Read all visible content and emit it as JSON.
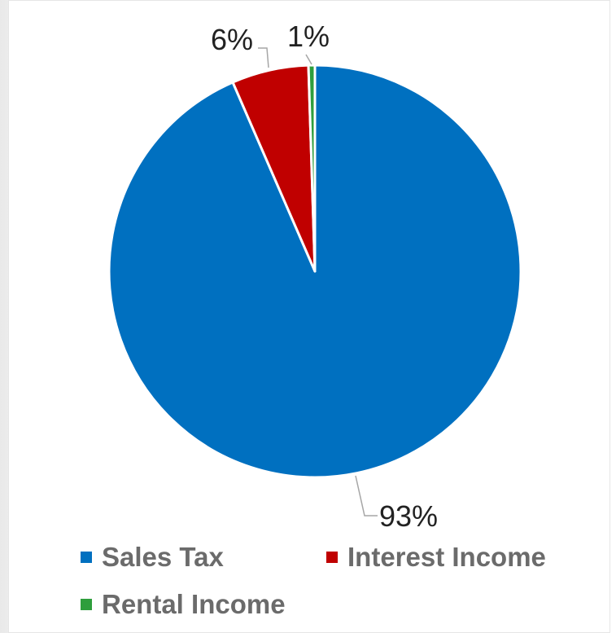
{
  "chart_data": {
    "type": "pie",
    "title": "",
    "slices": [
      {
        "name": "Sales Tax",
        "value": 93,
        "label": "93%",
        "color": "#0070C0"
      },
      {
        "name": "Interest Income",
        "value": 6,
        "label": "6%",
        "color": "#C00000"
      },
      {
        "name": "Rental Income",
        "value": 0.5,
        "label": "1%",
        "color": "#2E9E3C"
      }
    ],
    "legend_position": "bottom"
  },
  "legend": {
    "items": [
      {
        "label": "Sales Tax",
        "color": "#0070C0"
      },
      {
        "label": "Interest Income",
        "color": "#C00000"
      },
      {
        "label": "Rental Income",
        "color": "#2E9E3C"
      }
    ]
  }
}
